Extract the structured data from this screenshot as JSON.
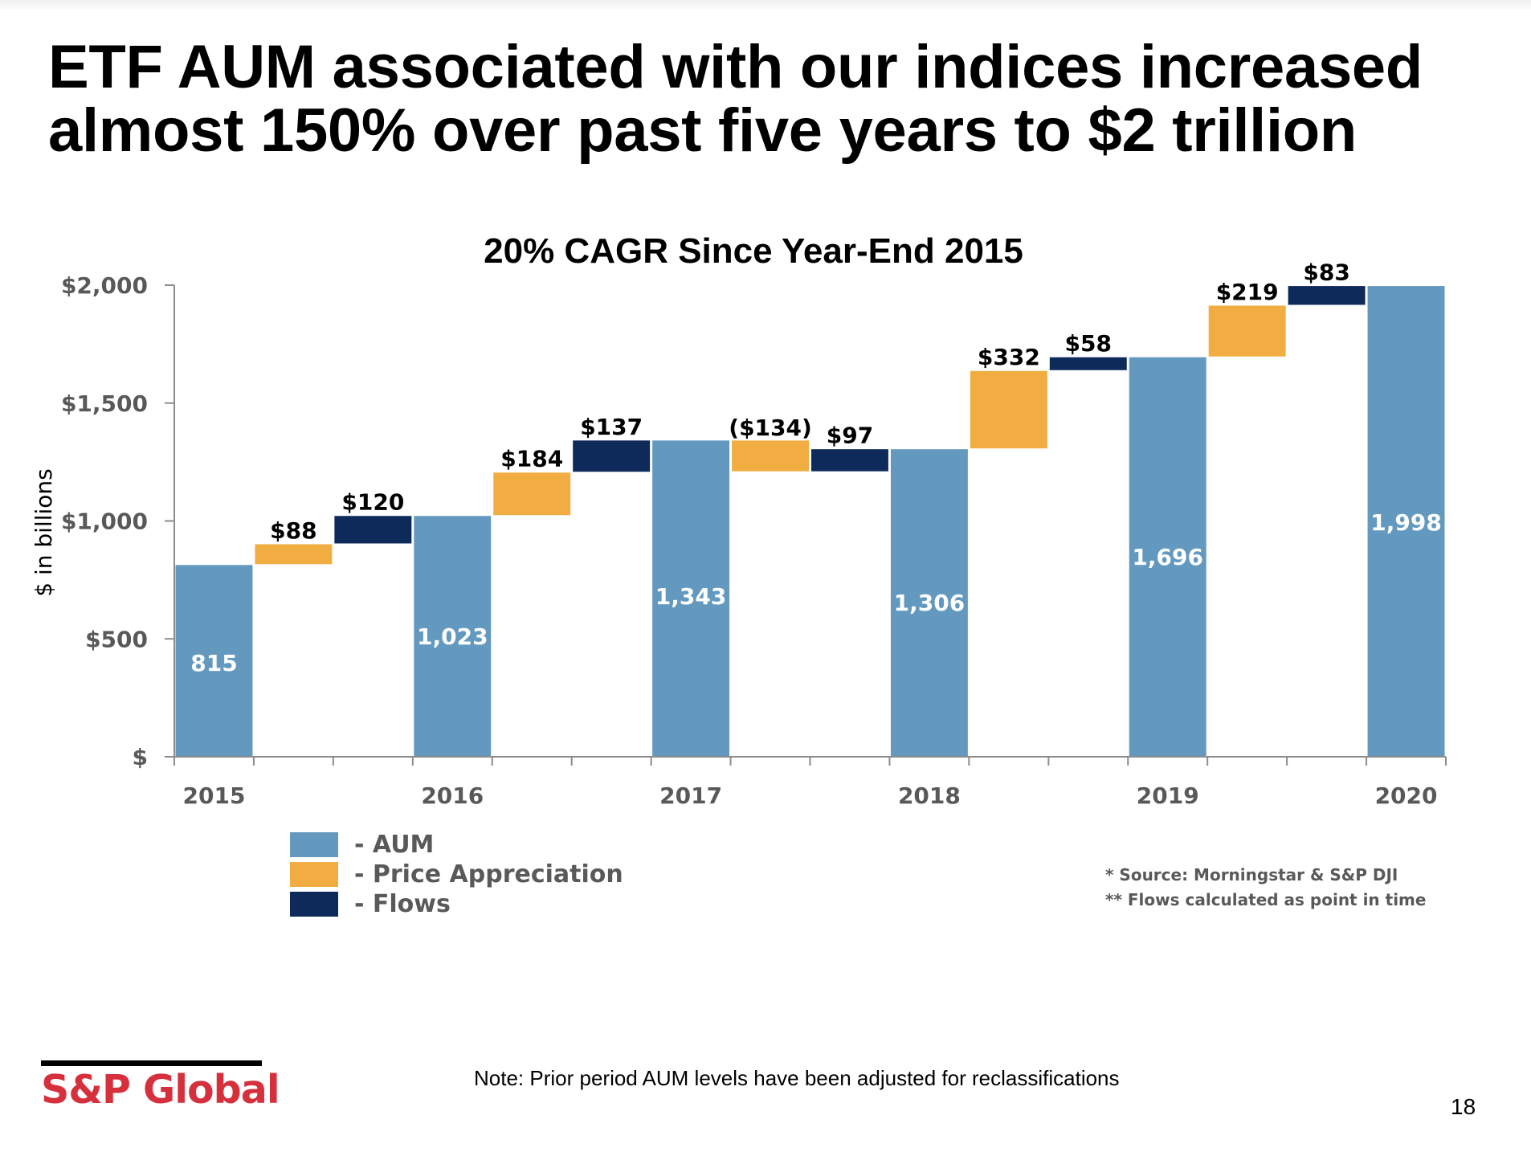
{
  "slide": {
    "title_lines": [
      "ETF AUM associated with our indices increased",
      "almost 150% over past five years to $2 trillion"
    ],
    "note": "Note:  Prior period AUM levels have been adjusted for reclassifications",
    "page_number": "18",
    "logo_text": "S&P Global",
    "footnotes": [
      "* Source: Morningstar  & S&P DJI",
      "** Flows calculated  as point in time"
    ]
  },
  "colors": {
    "aum": "#6399bf",
    "price_appreciation": "#f2ad42",
    "flows": "#0d2a5a",
    "axis": "#8c8c8c",
    "brand_red": "#d6303d"
  },
  "chart_data": {
    "type": "bar",
    "subtype": "waterfall",
    "title": "20% CAGR Since Year-End 2015",
    "xlabel": "",
    "ylabel": "$ in billions",
    "ylim": [
      0,
      2000
    ],
    "yticks": [
      0,
      500,
      1000,
      1500,
      2000
    ],
    "ytick_labels": [
      "$",
      "$500",
      "$1,000",
      "$1,500",
      "$2,000"
    ],
    "grid": false,
    "legend_position": "bottom-left",
    "legend": [
      {
        "key": "aum",
        "label": "- AUM"
      },
      {
        "key": "price_appreciation",
        "label": "- Price Appreciation"
      },
      {
        "key": "flows",
        "label": "- Flows"
      }
    ],
    "categories": [
      "2015",
      "2016",
      "2017",
      "2018",
      "2019",
      "2020"
    ],
    "aum": [
      815,
      1023,
      1343,
      1306,
      1696,
      1998
    ],
    "aum_labels": [
      "815",
      "1,023",
      "1,343",
      "1,306",
      "1,696",
      "1,998"
    ],
    "price_appreciation": [
      88,
      184,
      -134,
      332,
      219
    ],
    "price_appreciation_labels": [
      "$88",
      "$184",
      "($134)",
      "$332",
      "$219"
    ],
    "flows": [
      120,
      137,
      97,
      58,
      83
    ],
    "flows_labels": [
      "$120",
      "$137",
      "$97",
      "$58",
      "$83"
    ],
    "steps": [
      {
        "type": "aum",
        "year": "2015",
        "start": 0,
        "end": 815,
        "label": "815"
      },
      {
        "type": "price_appreciation",
        "start": 815,
        "end": 903,
        "label": "$88"
      },
      {
        "type": "flows",
        "start": 903,
        "end": 1023,
        "label": "$120"
      },
      {
        "type": "aum",
        "year": "2016",
        "start": 0,
        "end": 1023,
        "label": "1,023"
      },
      {
        "type": "price_appreciation",
        "start": 1023,
        "end": 1207,
        "label": "$184"
      },
      {
        "type": "flows",
        "start": 1207,
        "end": 1343,
        "label": "$137"
      },
      {
        "type": "aum",
        "year": "2017",
        "start": 0,
        "end": 1343,
        "label": "1,343"
      },
      {
        "type": "price_appreciation",
        "start": 1343,
        "end": 1209,
        "label": "($134)"
      },
      {
        "type": "flows",
        "start": 1209,
        "end": 1306,
        "label": "$97"
      },
      {
        "type": "aum",
        "year": "2018",
        "start": 0,
        "end": 1306,
        "label": "1,306"
      },
      {
        "type": "price_appreciation",
        "start": 1306,
        "end": 1638,
        "label": "$332"
      },
      {
        "type": "flows",
        "start": 1638,
        "end": 1696,
        "label": "$58"
      },
      {
        "type": "aum",
        "year": "2019",
        "start": 0,
        "end": 1696,
        "label": "1,696"
      },
      {
        "type": "price_appreciation",
        "start": 1696,
        "end": 1915,
        "label": "$219"
      },
      {
        "type": "flows",
        "start": 1915,
        "end": 1998,
        "label": "$83"
      },
      {
        "type": "aum",
        "year": "2020",
        "start": 0,
        "end": 1998,
        "label": "1,998"
      }
    ]
  }
}
